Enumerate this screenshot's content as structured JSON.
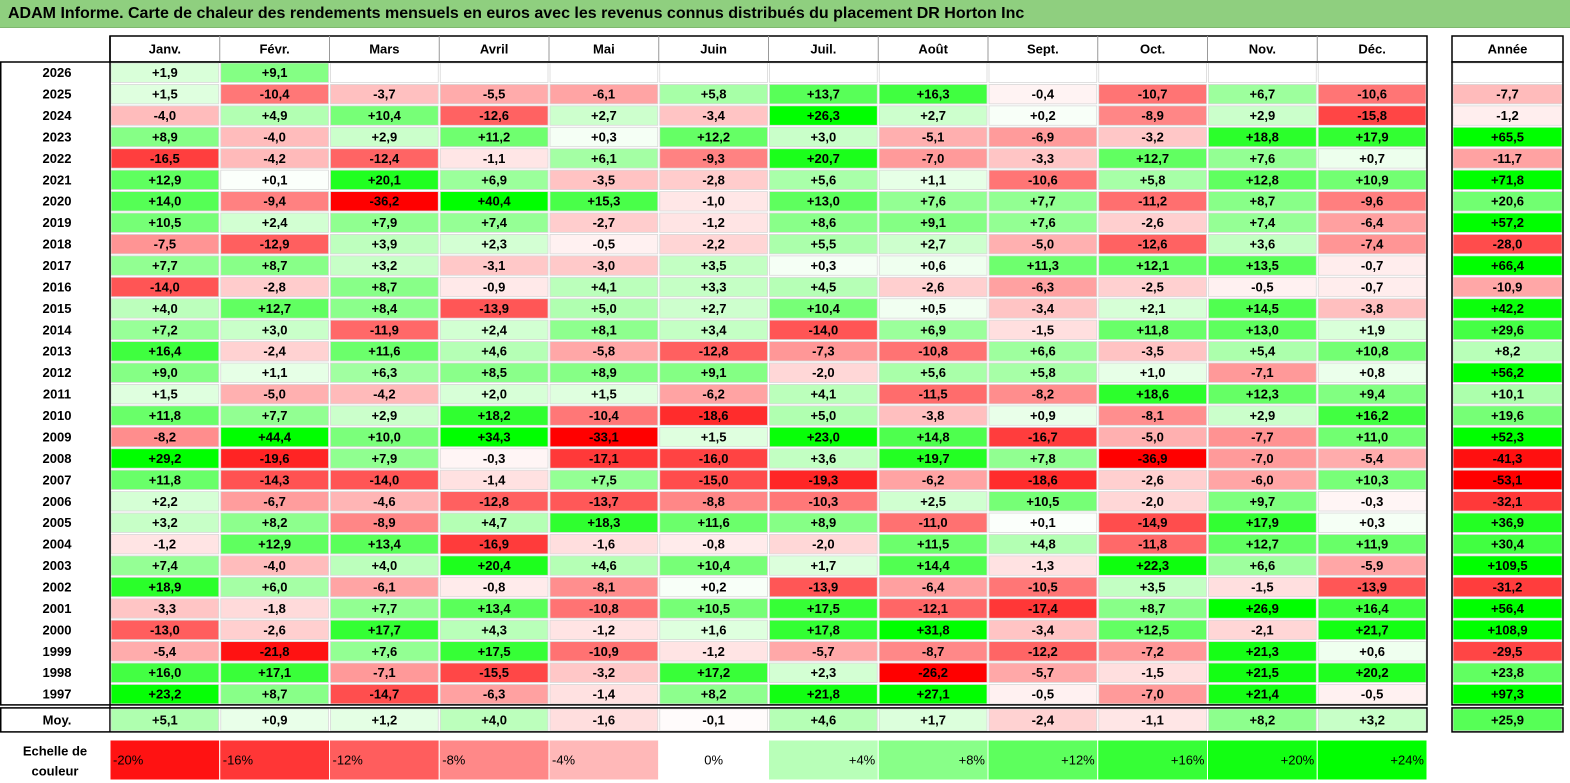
{
  "title": "ADAM Informe. Carte de chaleur des rendements mensuels en euros avec les revenus connus distribués du placement DR Horton Inc",
  "colors": {
    "neg_full": "#ff0000",
    "pos_full": "#00ff00",
    "neutral": "#ffffff",
    "title_bg": "#8fcf7f"
  },
  "chart_data": {
    "type": "heatmap",
    "title": "ADAM Informe. Carte de chaleur des rendements mensuels en euros avec les revenus connus distribués du placement DR Horton Inc",
    "columns": [
      "Janv.",
      "Févr.",
      "Mars",
      "Avril",
      "Mai",
      "Juin",
      "Juil.",
      "Août",
      "Sept.",
      "Oct.",
      "Nov.",
      "Déc."
    ],
    "year_column": "Année",
    "rows": [
      {
        "label": "2026",
        "values": [
          "+1,9",
          "+9,1",
          "",
          "",
          "",
          "",
          "",
          "",
          "",
          "",
          "",
          ""
        ],
        "year": ""
      },
      {
        "label": "2025",
        "values": [
          "+1,5",
          "-10,4",
          "-3,7",
          "-5,5",
          "-6,1",
          "+5,8",
          "+13,7",
          "+16,3",
          "-0,4",
          "-10,7",
          "+6,7",
          "-10,6"
        ],
        "year": "-7,7"
      },
      {
        "label": "2024",
        "values": [
          "-4,0",
          "+4,9",
          "+10,4",
          "-12,6",
          "+2,7",
          "-3,4",
          "+26,3",
          "+2,7",
          "+0,2",
          "-8,9",
          "+2,9",
          "-15,8"
        ],
        "year": "-1,2"
      },
      {
        "label": "2023",
        "values": [
          "+8,9",
          "-4,0",
          "+2,9",
          "+11,2",
          "+0,3",
          "+12,2",
          "+3,0",
          "-5,1",
          "-6,9",
          "-3,2",
          "+18,8",
          "+17,9"
        ],
        "year": "+65,5"
      },
      {
        "label": "2022",
        "values": [
          "-16,5",
          "-4,2",
          "-12,4",
          "-1,1",
          "+6,1",
          "-9,3",
          "+20,7",
          "-7,0",
          "-3,3",
          "+12,7",
          "+7,6",
          "+0,7"
        ],
        "year": "-11,7"
      },
      {
        "label": "2021",
        "values": [
          "+12,9",
          "+0,1",
          "+20,1",
          "+6,9",
          "-3,5",
          "-2,8",
          "+5,6",
          "+1,1",
          "-10,6",
          "+5,8",
          "+12,8",
          "+10,9"
        ],
        "year": "+71,8"
      },
      {
        "label": "2020",
        "values": [
          "+14,0",
          "-9,4",
          "-36,2",
          "+40,4",
          "+15,3",
          "-1,0",
          "+13,0",
          "+7,6",
          "+7,7",
          "-11,2",
          "+8,7",
          "-9,6"
        ],
        "year": "+20,6"
      },
      {
        "label": "2019",
        "values": [
          "+10,5",
          "+2,4",
          "+7,9",
          "+7,4",
          "-2,7",
          "-1,2",
          "+8,6",
          "+9,1",
          "+7,6",
          "-2,6",
          "+7,4",
          "-6,4"
        ],
        "year": "+57,2"
      },
      {
        "label": "2018",
        "values": [
          "-7,5",
          "-12,9",
          "+3,9",
          "+2,3",
          "-0,5",
          "-2,2",
          "+5,5",
          "+2,7",
          "-5,0",
          "-12,6",
          "+3,6",
          "-7,4"
        ],
        "year": "-28,0"
      },
      {
        "label": "2017",
        "values": [
          "+7,7",
          "+8,7",
          "+3,2",
          "-3,1",
          "-3,0",
          "+3,5",
          "+0,3",
          "+0,6",
          "+11,3",
          "+12,1",
          "+13,5",
          "-0,7"
        ],
        "year": "+66,4"
      },
      {
        "label": "2016",
        "values": [
          "-14,0",
          "-2,8",
          "+8,7",
          "-0,9",
          "+4,1",
          "+3,3",
          "+4,5",
          "-2,6",
          "-6,3",
          "-2,5",
          "-0,5",
          "-0,7"
        ],
        "year": "-10,9"
      },
      {
        "label": "2015",
        "values": [
          "+4,0",
          "+12,7",
          "+8,4",
          "-13,9",
          "+5,0",
          "+2,7",
          "+10,4",
          "+0,5",
          "-3,4",
          "+2,1",
          "+14,5",
          "-3,8"
        ],
        "year": "+42,2"
      },
      {
        "label": "2014",
        "values": [
          "+7,2",
          "+3,0",
          "-11,9",
          "+2,4",
          "+8,1",
          "+3,4",
          "-14,0",
          "+6,9",
          "-1,5",
          "+11,8",
          "+13,0",
          "+1,9"
        ],
        "year": "+29,6"
      },
      {
        "label": "2013",
        "values": [
          "+16,4",
          "-2,4",
          "+11,6",
          "+4,6",
          "-5,8",
          "-12,8",
          "-7,3",
          "-10,8",
          "+6,6",
          "-3,5",
          "+5,4",
          "+10,8"
        ],
        "year": "+8,2"
      },
      {
        "label": "2012",
        "values": [
          "+9,0",
          "+1,1",
          "+6,3",
          "+8,5",
          "+8,9",
          "+9,1",
          "-2,0",
          "+5,6",
          "+5,8",
          "+1,0",
          "-7,1",
          "+0,8"
        ],
        "year": "+56,2"
      },
      {
        "label": "2011",
        "values": [
          "+1,5",
          "-5,0",
          "-4,2",
          "+2,0",
          "+1,5",
          "-6,2",
          "+4,1",
          "-11,5",
          "-8,2",
          "+18,6",
          "+12,3",
          "+9,4"
        ],
        "year": "+10,1"
      },
      {
        "label": "2010",
        "values": [
          "+11,8",
          "+7,7",
          "+2,9",
          "+18,2",
          "-10,4",
          "-18,6",
          "+5,0",
          "-3,8",
          "+0,9",
          "-8,1",
          "+2,9",
          "+16,2"
        ],
        "year": "+19,6"
      },
      {
        "label": "2009",
        "values": [
          "-8,2",
          "+44,4",
          "+10,0",
          "+34,3",
          "-33,1",
          "+1,5",
          "+23,0",
          "+14,8",
          "-16,7",
          "-5,0",
          "-7,7",
          "+11,0"
        ],
        "year": "+52,3"
      },
      {
        "label": "2008",
        "values": [
          "+29,2",
          "-19,6",
          "+7,9",
          "-0,3",
          "-17,1",
          "-16,0",
          "+3,6",
          "+19,7",
          "+7,8",
          "-36,9",
          "-7,0",
          "-5,4"
        ],
        "year": "-41,3"
      },
      {
        "label": "2007",
        "values": [
          "+11,8",
          "-14,3",
          "-14,0",
          "-1,4",
          "+7,5",
          "-15,0",
          "-19,3",
          "-6,2",
          "-18,6",
          "-2,6",
          "-6,0",
          "+10,3"
        ],
        "year": "-53,1"
      },
      {
        "label": "2006",
        "values": [
          "+2,2",
          "-6,7",
          "-4,6",
          "-12,8",
          "-13,7",
          "-8,8",
          "-10,3",
          "+2,5",
          "+10,5",
          "-2,0",
          "+9,7",
          "-0,3"
        ],
        "year": "-32,1"
      },
      {
        "label": "2005",
        "values": [
          "+3,2",
          "+8,2",
          "-8,9",
          "+4,7",
          "+18,3",
          "+11,6",
          "+8,9",
          "-11,0",
          "+0,1",
          "-14,9",
          "+17,9",
          "+0,3"
        ],
        "year": "+36,9"
      },
      {
        "label": "2004",
        "values": [
          "-1,2",
          "+12,9",
          "+13,4",
          "-16,9",
          "-1,6",
          "-0,8",
          "-2,0",
          "+11,5",
          "+4,8",
          "-11,8",
          "+12,7",
          "+11,9"
        ],
        "year": "+30,4"
      },
      {
        "label": "2003",
        "values": [
          "+7,4",
          "-4,0",
          "+4,0",
          "+20,4",
          "+4,6",
          "+10,4",
          "+1,7",
          "+14,4",
          "-1,3",
          "+22,3",
          "+6,6",
          "-5,9"
        ],
        "year": "+109,5"
      },
      {
        "label": "2002",
        "values": [
          "+18,9",
          "+6,0",
          "-6,1",
          "-0,8",
          "-8,1",
          "+0,2",
          "-13,9",
          "-6,4",
          "-10,5",
          "+3,5",
          "-1,5",
          "-13,9"
        ],
        "year": "-31,2"
      },
      {
        "label": "2001",
        "values": [
          "-3,3",
          "-1,8",
          "+7,7",
          "+13,4",
          "-10,8",
          "+10,5",
          "+17,5",
          "-12,1",
          "-17,4",
          "+8,7",
          "+26,9",
          "+16,4"
        ],
        "year": "+56,4"
      },
      {
        "label": "2000",
        "values": [
          "-13,0",
          "-2,6",
          "+17,7",
          "+4,3",
          "-1,2",
          "+1,6",
          "+17,8",
          "+31,8",
          "-3,4",
          "+12,5",
          "-2,1",
          "+21,7"
        ],
        "year": "+108,9"
      },
      {
        "label": "1999",
        "values": [
          "-5,4",
          "-21,8",
          "+7,6",
          "+17,5",
          "-10,9",
          "-1,2",
          "-5,7",
          "-8,7",
          "-12,2",
          "-7,2",
          "+21,3",
          "+0,6"
        ],
        "year": "-29,5"
      },
      {
        "label": "1998",
        "values": [
          "+16,0",
          "+17,1",
          "-7,1",
          "-15,5",
          "-3,2",
          "+17,2",
          "+2,3",
          "-26,2",
          "-5,7",
          "-1,5",
          "+21,5",
          "+20,2"
        ],
        "year": "+23,8"
      },
      {
        "label": "1997",
        "values": [
          "+23,2",
          "+8,7",
          "-14,7",
          "-6,3",
          "-1,4",
          "+8,2",
          "+21,8",
          "+27,1",
          "-0,5",
          "-7,0",
          "+21,4",
          "-0,5"
        ],
        "year": "+97,3"
      }
    ],
    "average_row": {
      "label": "Moy.",
      "values": [
        "+5,1",
        "+0,9",
        "+1,2",
        "+4,0",
        "-1,6",
        "-0,1",
        "+4,6",
        "+1,7",
        "-2,4",
        "-1,1",
        "+8,2",
        "+3,2"
      ],
      "year": "+25,9"
    },
    "scale": {
      "label_line1": "Echelle de",
      "label_line2": "couleur",
      "steps": [
        "-20%",
        "-16%",
        "-12%",
        "-8%",
        "-4%",
        "0%",
        "+4%",
        "+8%",
        "+12%",
        "+16%",
        "+20%",
        "+24%"
      ]
    }
  }
}
